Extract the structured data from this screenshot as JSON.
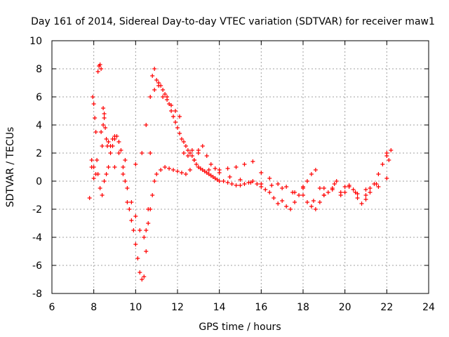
{
  "chart_data": {
    "type": "scatter",
    "title": "Day 161 of 2014, Sidereal Day-to-day VTEC variation (SDTVAR) for receiver maw1",
    "xlabel": "GPS time / hours",
    "ylabel": "SDTVAR / TECUs",
    "xlim": [
      6,
      24
    ],
    "ylim": [
      -8,
      10
    ],
    "xticks": [
      6,
      8,
      10,
      12,
      14,
      16,
      18,
      20,
      22,
      24
    ],
    "yticks": [
      -8,
      -6,
      -4,
      -2,
      0,
      2,
      4,
      6,
      8,
      10
    ],
    "grid": true,
    "marker": "+",
    "colors": {
      "series": "#ff0000",
      "grid": "#a0a0a0",
      "axes": "#000000"
    },
    "series": [
      {
        "name": "maw1",
        "x": [
          7.8,
          7.9,
          7.95,
          8.0,
          8.05,
          8.1,
          8.15,
          8.2,
          8.25,
          8.3,
          8.35,
          8.4,
          8.45,
          8.5,
          8.55,
          8.6,
          8.65,
          8.7,
          8.8,
          8.9,
          9.0,
          9.1,
          9.2,
          9.3,
          9.4,
          9.5,
          9.6,
          9.7,
          9.8,
          9.9,
          10.0,
          10.1,
          10.2,
          10.3,
          10.4,
          10.5,
          10.6,
          10.7,
          10.8,
          10.9,
          11.0,
          11.1,
          11.2,
          11.3,
          11.4,
          11.5,
          11.6,
          11.7,
          11.8,
          11.9,
          12.0,
          12.1,
          12.2,
          12.3,
          12.4,
          12.5,
          12.6,
          12.7,
          12.8,
          12.9,
          13.0,
          13.1,
          13.2,
          13.3,
          13.4,
          13.5,
          13.6,
          13.7,
          13.8,
          13.9,
          14.0,
          14.2,
          14.4,
          14.6,
          14.8,
          15.0,
          15.2,
          15.4,
          15.6,
          15.8,
          16.0,
          16.2,
          16.4,
          16.6,
          16.8,
          17.0,
          17.2,
          17.4,
          17.6,
          17.8,
          18.0,
          18.2,
          18.4,
          18.6,
          18.8,
          19.0,
          19.2,
          19.4,
          19.6,
          19.8,
          20.0,
          20.2,
          20.4,
          20.6,
          20.8,
          21.0,
          21.2,
          21.4,
          21.6,
          21.8,
          22.0,
          22.1,
          22.2,
          7.9,
          8.0,
          8.1,
          8.3,
          8.4,
          8.5,
          8.6,
          8.7,
          8.8,
          8.9,
          9.0,
          9.2,
          9.4,
          9.6,
          9.8,
          10.0,
          10.2,
          10.4,
          10.5,
          10.6,
          10.7,
          10.8,
          10.9,
          11.0,
          11.2,
          11.4,
          11.6,
          11.8,
          12.0,
          12.2,
          12.4,
          12.6,
          12.8,
          13.0,
          13.2,
          13.4,
          13.6,
          13.8,
          14.0,
          14.4,
          14.8,
          15.2,
          15.6,
          16.0,
          16.4,
          16.8,
          17.2,
          17.6,
          18.0,
          18.2,
          18.4,
          18.6,
          18.8,
          19.0,
          19.4,
          19.8,
          20.2,
          20.6,
          21.0,
          21.2,
          21.6,
          22.0,
          8.0,
          8.2,
          8.35,
          8.45,
          8.5,
          9.0,
          9.5,
          10.0,
          10.3,
          10.5,
          10.7,
          10.9,
          11.1,
          11.3,
          11.5,
          11.7,
          11.9,
          12.1,
          12.3,
          12.5,
          12.7,
          13.0,
          13.5,
          14.0,
          14.5,
          15.0,
          15.5,
          16.0,
          16.5,
          17.0,
          17.5,
          18.0,
          18.5,
          19.0,
          19.5,
          20.0,
          20.5,
          21.0,
          21.5,
          22.0
        ],
        "y": [
          -1.2,
          1.0,
          6.0,
          5.5,
          4.5,
          3.5,
          1.5,
          7.8,
          8.2,
          8.3,
          8.0,
          2.5,
          5.2,
          4.8,
          3.8,
          3.0,
          2.5,
          2.8,
          2.0,
          2.5,
          3.0,
          3.2,
          2.8,
          2.2,
          1.0,
          0.0,
          -1.5,
          -2.0,
          -2.8,
          -3.5,
          -4.5,
          -5.5,
          -6.5,
          -7.0,
          -6.8,
          -5.0,
          -2.0,
          2.0,
          7.5,
          8.0,
          7.2,
          7.0,
          6.8,
          6.5,
          6.2,
          6.0,
          5.5,
          5.0,
          4.6,
          4.2,
          3.8,
          3.4,
          3.0,
          2.8,
          2.5,
          2.2,
          2.0,
          1.8,
          1.5,
          1.2,
          1.0,
          0.9,
          0.8,
          0.7,
          0.6,
          0.5,
          0.4,
          0.3,
          0.2,
          0.1,
          0.0,
          0.0,
          -0.1,
          -0.2,
          -0.3,
          -0.3,
          -0.2,
          -0.1,
          0.0,
          -0.2,
          -0.4,
          -0.6,
          -0.8,
          -1.2,
          -1.6,
          -1.4,
          -1.8,
          -2.0,
          -1.5,
          -1.0,
          -0.5,
          0.0,
          0.5,
          0.8,
          -0.5,
          -1.0,
          -0.8,
          -0.5,
          0.0,
          -1.0,
          -0.8,
          -0.3,
          -0.6,
          -1.2,
          -1.6,
          -1.0,
          -0.5,
          -0.2,
          0.5,
          1.2,
          2.0,
          1.5,
          2.2,
          1.5,
          1.0,
          0.5,
          -0.5,
          -1.0,
          0.0,
          0.5,
          1.0,
          2.5,
          3.0,
          3.2,
          2.0,
          0.5,
          -0.5,
          -1.5,
          -2.5,
          -3.5,
          -4.0,
          -3.5,
          -3.0,
          -2.0,
          -1.0,
          0.0,
          0.5,
          0.8,
          1.0,
          0.9,
          0.8,
          0.7,
          0.6,
          0.5,
          0.8,
          1.5,
          2.2,
          2.5,
          1.8,
          1.2,
          0.9,
          0.8,
          0.9,
          1.0,
          1.2,
          1.4,
          0.6,
          0.2,
          -0.2,
          -0.4,
          -0.8,
          -1.0,
          -1.5,
          -1.8,
          -2.0,
          -1.5,
          -0.5,
          -0.6,
          -0.8,
          -0.4,
          -0.9,
          -1.3,
          -0.8,
          -0.4,
          0.2,
          0.2,
          0.5,
          3.5,
          4.0,
          4.5,
          1.0,
          1.5,
          1.2,
          2.0,
          4.0,
          6.0,
          6.5,
          6.8,
          6.0,
          5.8,
          5.4,
          5.0,
          4.6,
          2.0,
          1.8,
          2.2,
          2.0,
          0.8,
          0.6,
          0.3,
          0.1,
          -0.1,
          -0.2,
          -0.3,
          -0.5,
          -0.8,
          -0.4,
          -1.4,
          -1.0,
          -0.2,
          -0.4,
          -0.8,
          -0.6,
          -0.2,
          1.8
        ]
      }
    ]
  }
}
